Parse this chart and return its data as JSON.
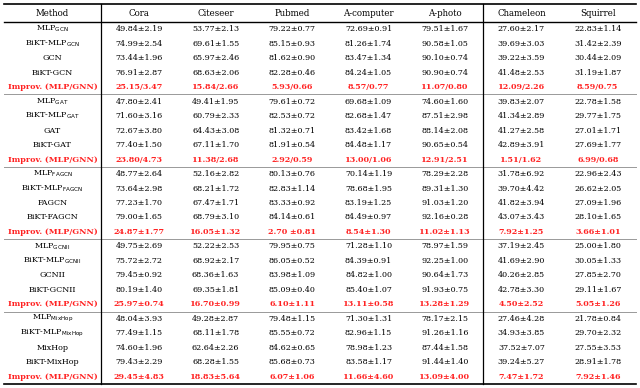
{
  "headers": [
    "Method",
    "Cora",
    "Citeseer",
    "Pubmed",
    "A-computer",
    "A-photo",
    "Chameleon",
    "Squirrel"
  ],
  "groups": [
    {
      "rows": [
        {
          "method": "MLP$_{\\mathrm{GCN}}$",
          "values": [
            "49.84±2.19",
            "53.77±2.13",
            "79.22±0.77",
            "72.69±0.91",
            "79.51±1.67",
            "27.60±2.17",
            "22.83±1.14"
          ]
        },
        {
          "method": "BiKT-MLP$_{\\mathrm{GCN}}$",
          "values": [
            "74.99±2.54",
            "69.61±1.55",
            "85.15±0.93",
            "81.26±1.74",
            "90.58±1.05",
            "39.69±3.03",
            "31.42±2.39"
          ]
        },
        {
          "method": "GCN",
          "values": [
            "73.44±1.96",
            "65.97±2.46",
            "81.62±0.90",
            "83.47±1.34",
            "90.10±0.74",
            "39.22±3.59",
            "30.44±2.09"
          ]
        },
        {
          "method": "BiKT-GCN",
          "values": [
            "76.91±2.87",
            "68.63±2.06",
            "82.28±0.46",
            "84.24±1.05",
            "90.90±0.74",
            "41.48±2.53",
            "31.19±1.87"
          ]
        },
        {
          "method": "Improv. (MLP/GNN)",
          "values": [
            "25.15/3.47",
            "15.84/2.66",
            "5.93/0.66",
            "8.57/0.77",
            "11.07/0.80",
            "12.09/2.26",
            "8.59/0.75"
          ],
          "bold": true,
          "red": true
        }
      ]
    },
    {
      "rows": [
        {
          "method": "MLP$_{\\mathrm{GAT}}$",
          "values": [
            "47.80±2.41",
            "49.41±1.95",
            "79.61±0.72",
            "69.68±1.09",
            "74.60±1.60",
            "39.83±2.07",
            "22.78±1.58"
          ]
        },
        {
          "method": "BiKT-MLP$_{\\mathrm{GAT}}$",
          "values": [
            "71.60±3.16",
            "60.79±2.33",
            "82.53±0.72",
            "82.68±1.47",
            "87.51±2.98",
            "41.34±2.89",
            "29.77±1.75"
          ]
        },
        {
          "method": "GAT",
          "values": [
            "72.67±3.80",
            "64.43±3.08",
            "81.32±0.71",
            "83.42±1.68",
            "88.14±2.08",
            "41.27±2.58",
            "27.01±1.71"
          ]
        },
        {
          "method": "BiKT-GAT",
          "values": [
            "77.40±1.50",
            "67.11±1.70",
            "81.91±0.54",
            "84.48±1.17",
            "90.65±0.54",
            "42.89±3.91",
            "27.69±1.77"
          ]
        },
        {
          "method": "Improv. (MLP/GNN)",
          "values": [
            "23.80/4.73",
            "11.38/2.68",
            "2.92/0.59",
            "13.00/1.06",
            "12.91/2.51",
            "1.51/1.62",
            "6.99/0.68"
          ],
          "bold": true,
          "red": true
        }
      ]
    },
    {
      "rows": [
        {
          "method": "MLP$_{\\mathrm{FAGCN}}$",
          "values": [
            "48.77±2.64",
            "52.16±2.82",
            "80.13±0.76",
            "70.14±1.19",
            "78.29±2.28",
            "31.78±6.92",
            "22.96±2.43"
          ]
        },
        {
          "method": "BiKT-MLP$_{\\mathrm{FAGCN}}$",
          "values": [
            "73.64±2.98",
            "68.21±1.72",
            "82.83±1.14",
            "78.68±1.95",
            "89.31±1.30",
            "39.70±4.42",
            "26.62±2.05"
          ]
        },
        {
          "method": "FAGCN",
          "values": [
            "77.23±1.70",
            "67.47±1.71",
            "83.33±0.92",
            "83.19±1.25",
            "91.03±1.20",
            "41.82±3.94",
            "27.09±1.96"
          ]
        },
        {
          "method": "BiKT-FAGCN",
          "values": [
            "79.00±1.65",
            "68.79±3.10",
            "84.14±0.61",
            "84.49±0.97",
            "92.16±0.28",
            "43.07±3.43",
            "28.10±1.65"
          ]
        },
        {
          "method": "Improv. (MLP/GNN)",
          "values": [
            "24.87±1.77",
            "16.05±1.32",
            "2.70 ±0.81",
            "8.54±1.30",
            "11.02±1.13",
            "7.92±1.25",
            "3.66±1.01"
          ],
          "bold": true,
          "red": true
        }
      ]
    },
    {
      "rows": [
        {
          "method": "MLP$_{\\mathrm{GCNII}}$",
          "values": [
            "49.75±2.69",
            "52.22±2.53",
            "79.95±0.75",
            "71.28±1.10",
            "78.97±1.59",
            "37.19±2.45",
            "25.00±1.80"
          ]
        },
        {
          "method": "BiKT-MLP$_{\\mathrm{GCNII}}$",
          "values": [
            "75.72±2.72",
            "68.92±2.17",
            "86.05±0.52",
            "84.39±0.91",
            "92.25±1.00",
            "41.69±2.90",
            "30.05±1.33"
          ]
        },
        {
          "method": "GCNII",
          "values": [
            "79.45±0.92",
            "68.36±1.63",
            "83.98±1.09",
            "84.82±1.00",
            "90.64±1.73",
            "40.26±2.85",
            "27.85±2.70"
          ]
        },
        {
          "method": "BiKT-GCNII",
          "values": [
            "80.19±1.40",
            "69.35±1.81",
            "85.09±0.40",
            "85.40±1.07",
            "91.93±0.75",
            "42.78±3.30",
            "29.11±1.67"
          ]
        },
        {
          "method": "Improv. (MLP/GNN)",
          "values": [
            "25.97±0.74",
            "16.70±0.99",
            "6.10±1.11",
            "13.11±0.58",
            "13.28±1.29",
            "4.50±2.52",
            "5.05±1.26"
          ],
          "bold": true,
          "red": true
        }
      ]
    },
    {
      "rows": [
        {
          "method": "MLP$_{\\mathrm{MixHop}}$",
          "values": [
            "48.04±3.93",
            "49.28±2.87",
            "79.48±1.15",
            "71.30±1.31",
            "78.17±2.15",
            "27.46±4.28",
            "21.78±0.84"
          ]
        },
        {
          "method": "BiKT-MLP$_{\\mathrm{MixHop}}$",
          "values": [
            "77.49±1.15",
            "68.11±1.78",
            "85.55±0.72",
            "82.96±1.15",
            "91.26±1.16",
            "34.93±3.85",
            "29.70±2.32"
          ]
        },
        {
          "method": "MixHop",
          "values": [
            "74.60±1.96",
            "62.64±2.26",
            "84.62±0.65",
            "78.98±1.23",
            "87.44±1.58",
            "37.52±7.07",
            "27.55±3.53"
          ]
        },
        {
          "method": "BiKT-MixHop",
          "values": [
            "79.43±2.29",
            "68.28±1.55",
            "85.68±0.73",
            "83.58±1.17",
            "91.44±1.40",
            "39.24±5.27",
            "28.91±1.78"
          ]
        },
        {
          "method": "Improv. (MLP/GNN)",
          "values": [
            "29.45±4.83",
            "18.83±5.64",
            "6.07±1.06",
            "11.66±4.60",
            "13.09±4.00",
            "7.47±1.72",
            "7.92±1.46"
          ],
          "bold": true,
          "red": true
        }
      ]
    }
  ],
  "improv_color": "#FF2222",
  "bg_color": "#FFFFFF",
  "text_color": "#000000",
  "fontsize": 5.8,
  "header_fontsize": 6.2
}
